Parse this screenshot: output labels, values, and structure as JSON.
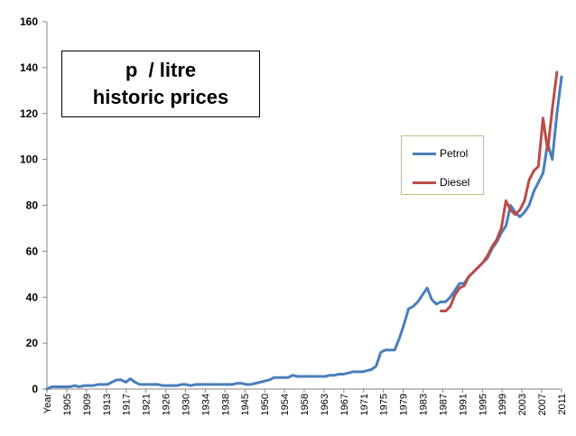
{
  "colors": {
    "petrol": "#4a7ebb",
    "diesel": "#be4b48",
    "axis": "#868686"
  },
  "title_box": {
    "line1": "p  / litre",
    "line2": "historic prices"
  },
  "legend": {
    "petrol_label": "Petrol",
    "diesel_label": "Diesel"
  },
  "chart_data": {
    "type": "line",
    "title": "p  / litre historic prices",
    "ylim": [
      0,
      160
    ],
    "yticks": [
      "0",
      "20",
      "40",
      "60",
      "80",
      "100",
      "120",
      "140",
      "160"
    ],
    "xtick_labels": [
      "Year",
      "1905",
      "1909",
      "1913",
      "1917",
      "1921",
      "1926",
      "1930",
      "1934",
      "1938",
      "1945",
      "1950",
      "1954",
      "1958",
      "1963",
      "1967",
      "1971",
      "1975",
      "1979",
      "1983",
      "1987",
      "1991",
      "1995",
      "1999",
      "2003",
      "2007",
      "2011"
    ],
    "legend_position": "right",
    "grid": false,
    "series": [
      {
        "name": "Petrol",
        "color": "#4a7ebb",
        "start_index": 0,
        "values": [
          0,
          1,
          1,
          1,
          1,
          1,
          1.5,
          1,
          1.5,
          1.5,
          1.5,
          2,
          2,
          2,
          3,
          4,
          4,
          3,
          4.5,
          3,
          2,
          2,
          2,
          2,
          2,
          1.5,
          1.5,
          1.5,
          1.5,
          2,
          2,
          1.5,
          2,
          2,
          2,
          2,
          2,
          2,
          2,
          2,
          2,
          2.5,
          2.5,
          2,
          2,
          2.5,
          3,
          3.5,
          4,
          5,
          5,
          5,
          5,
          6,
          5.5,
          5.5,
          5.5,
          5.5,
          5.5,
          5.5,
          5.5,
          6,
          6,
          6.5,
          6.5,
          7,
          7.5,
          7.5,
          7.5,
          8,
          8.5,
          10,
          16,
          17,
          17,
          17,
          22,
          28,
          35,
          36,
          38,
          41,
          44,
          39,
          37,
          38,
          38,
          40,
          43,
          46,
          46,
          49,
          51,
          53,
          55,
          57,
          61,
          64,
          68,
          71,
          80,
          77,
          75,
          77,
          80,
          86,
          90,
          94,
          107,
          100,
          120,
          136
        ]
      },
      {
        "name": "Diesel",
        "color": "#be4b48",
        "start_index": 85,
        "values": [
          34,
          34,
          36,
          41,
          44,
          45,
          49,
          51,
          53,
          55,
          58,
          62,
          65,
          70,
          82,
          78,
          76,
          78,
          82,
          91,
          95,
          97,
          118,
          104,
          122,
          138
        ]
      }
    ]
  }
}
